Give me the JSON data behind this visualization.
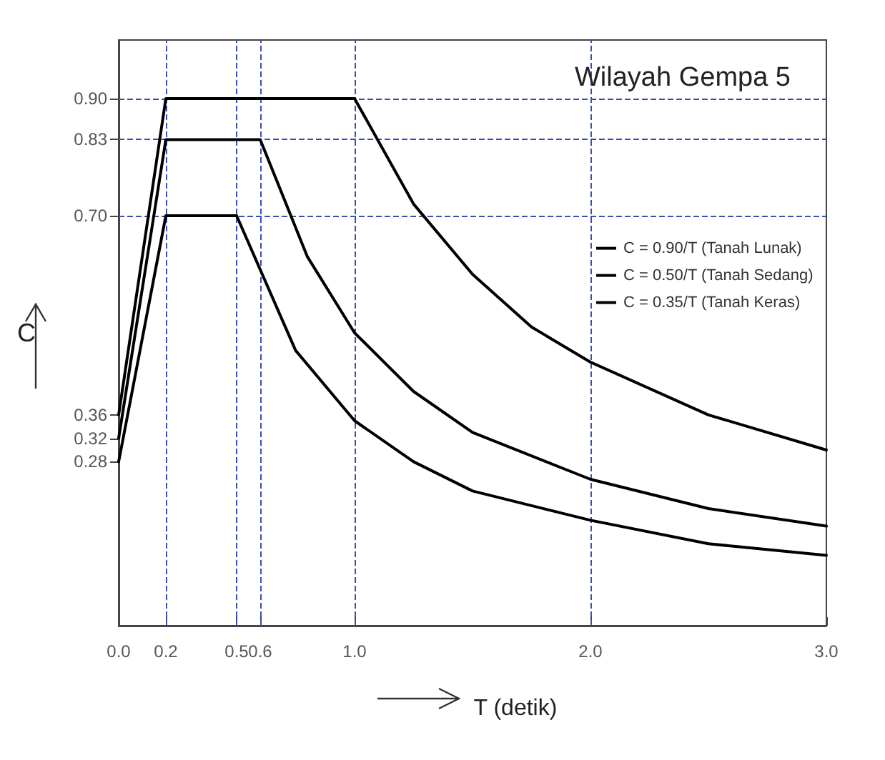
{
  "chart_data": {
    "type": "line",
    "title": "Wilayah Gempa 5",
    "xlabel": "T (detik)",
    "ylabel": "C",
    "xlim": [
      0,
      3
    ],
    "ylim": [
      0,
      1
    ],
    "xticks": [
      {
        "value": 0,
        "label": "0.0"
      },
      {
        "value": 0.2,
        "label": "0.2"
      },
      {
        "value": 0.5,
        "label": "0.5"
      },
      {
        "value": 0.6,
        "label": "0.6"
      },
      {
        "value": 1,
        "label": "1.0"
      },
      {
        "value": 2,
        "label": "2.0"
      },
      {
        "value": 3,
        "label": "3.0"
      }
    ],
    "yticks": [
      {
        "value": 0.28,
        "label": "0.28"
      },
      {
        "value": 0.32,
        "label": "0.32"
      },
      {
        "value": 0.36,
        "label": "0.36"
      },
      {
        "value": 0.7,
        "label": "0.70"
      },
      {
        "value": 0.83,
        "label": "0.83"
      },
      {
        "value": 0.9,
        "label": "0.90"
      }
    ],
    "grid": false,
    "legend": "right",
    "marker": "none",
    "line_style": "solid",
    "series": [
      {
        "name": "C = 0.90/T (Tanah Lunak)",
        "color": "#000000",
        "x": [
          0,
          0.2,
          1,
          1.25,
          1.5,
          1.75,
          2,
          2.5,
          3
        ],
        "values": [
          0.36,
          0.9,
          0.9,
          0.72,
          0.6,
          0.51,
          0.45,
          0.36,
          0.3
        ]
      },
      {
        "name": "C = 0.50/T (Tanah Sedang)",
        "color": "#000000",
        "x": [
          0,
          0.2,
          0.6,
          0.8,
          1,
          1.25,
          1.5,
          2,
          2.5,
          3
        ],
        "values": [
          0.32,
          0.83,
          0.83,
          0.63,
          0.5,
          0.4,
          0.33,
          0.25,
          0.2,
          0.17
        ]
      },
      {
        "name": "C = 0.35/T (Tanah Keras)",
        "color": "#000000",
        "x": [
          0,
          0.2,
          0.5,
          0.75,
          1,
          1.25,
          1.5,
          2,
          2.5,
          3
        ],
        "values": [
          0.28,
          0.7,
          0.7,
          0.47,
          0.35,
          0.28,
          0.23,
          0.18,
          0.14,
          0.12
        ]
      }
    ],
    "ref_lines": [
      {
        "axis": "x",
        "value": 0.2,
        "color": "#3a4fb0",
        "line_style": "dashed"
      },
      {
        "axis": "x",
        "value": 0.5,
        "color": "#3a4fb0",
        "line_style": "dashed"
      },
      {
        "axis": "x",
        "value": 0.6,
        "color": "#3a4fb0",
        "line_style": "dashed"
      },
      {
        "axis": "x",
        "value": 1,
        "color": "#3a4fb0",
        "line_style": "dashed"
      },
      {
        "axis": "x",
        "value": 2,
        "color": "#3a4fb0",
        "line_style": "dashed"
      },
      {
        "axis": "y",
        "value": 0.9,
        "color": "#3a4fb0",
        "line_style": "dashed"
      },
      {
        "axis": "y",
        "value": 0.83,
        "color": "#3a4fb0",
        "line_style": "dashed"
      },
      {
        "axis": "y",
        "value": 0.7,
        "color": "#3a4fb0",
        "line_style": "dashed"
      }
    ]
  }
}
